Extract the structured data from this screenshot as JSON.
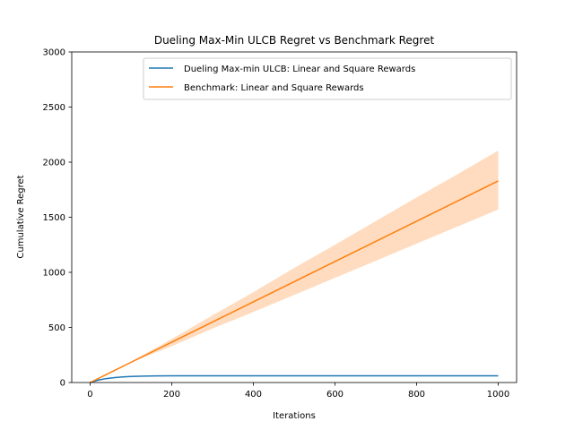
{
  "chart_data": {
    "type": "line",
    "title": "Dueling Max-Min ULCB Regret vs Benchmark Regret",
    "xlabel": "Iterations",
    "ylabel": "Cumulative Regret",
    "xlim": [
      -45,
      1045
    ],
    "ylim": [
      0,
      3000
    ],
    "xticks": [
      0,
      200,
      400,
      600,
      800,
      1000
    ],
    "xtick_labels": [
      "0",
      "200",
      "400",
      "600",
      "800",
      "1000"
    ],
    "yticks": [
      0,
      500,
      1000,
      1500,
      2000,
      2500,
      3000
    ],
    "ytick_labels": [
      "0",
      "500",
      "1000",
      "1500",
      "2000",
      "2500",
      "3000"
    ],
    "grid": false,
    "legend_position": "top-right",
    "series": [
      {
        "name": "Dueling Max-min ULCB: Linear and Square Rewards",
        "color": "#1f77b4",
        "x": [
          0,
          20,
          40,
          60,
          80,
          100,
          130,
          160,
          200,
          300,
          400,
          500,
          600,
          700,
          800,
          900,
          1000
        ],
        "values": [
          0,
          22,
          36,
          45,
          51,
          55,
          58,
          60,
          61,
          61,
          61,
          61,
          61,
          61,
          61,
          61,
          61
        ]
      },
      {
        "name": "Benchmark: Linear and Square Rewards",
        "color": "#ff7f0e",
        "band_color": "#ffdcc0",
        "x": [
          0,
          100,
          200,
          300,
          400,
          500,
          600,
          700,
          800,
          900,
          1000
        ],
        "values": [
          0,
          183,
          366,
          549,
          732,
          915,
          1098,
          1281,
          1464,
          1647,
          1830
        ],
        "lower": [
          0,
          180,
          330,
          490,
          640,
          795,
          950,
          1105,
          1260,
          1415,
          1570
        ],
        "upper": [
          0,
          190,
          395,
          610,
          820,
          1040,
          1250,
          1465,
          1680,
          1890,
          2105
        ]
      }
    ]
  }
}
